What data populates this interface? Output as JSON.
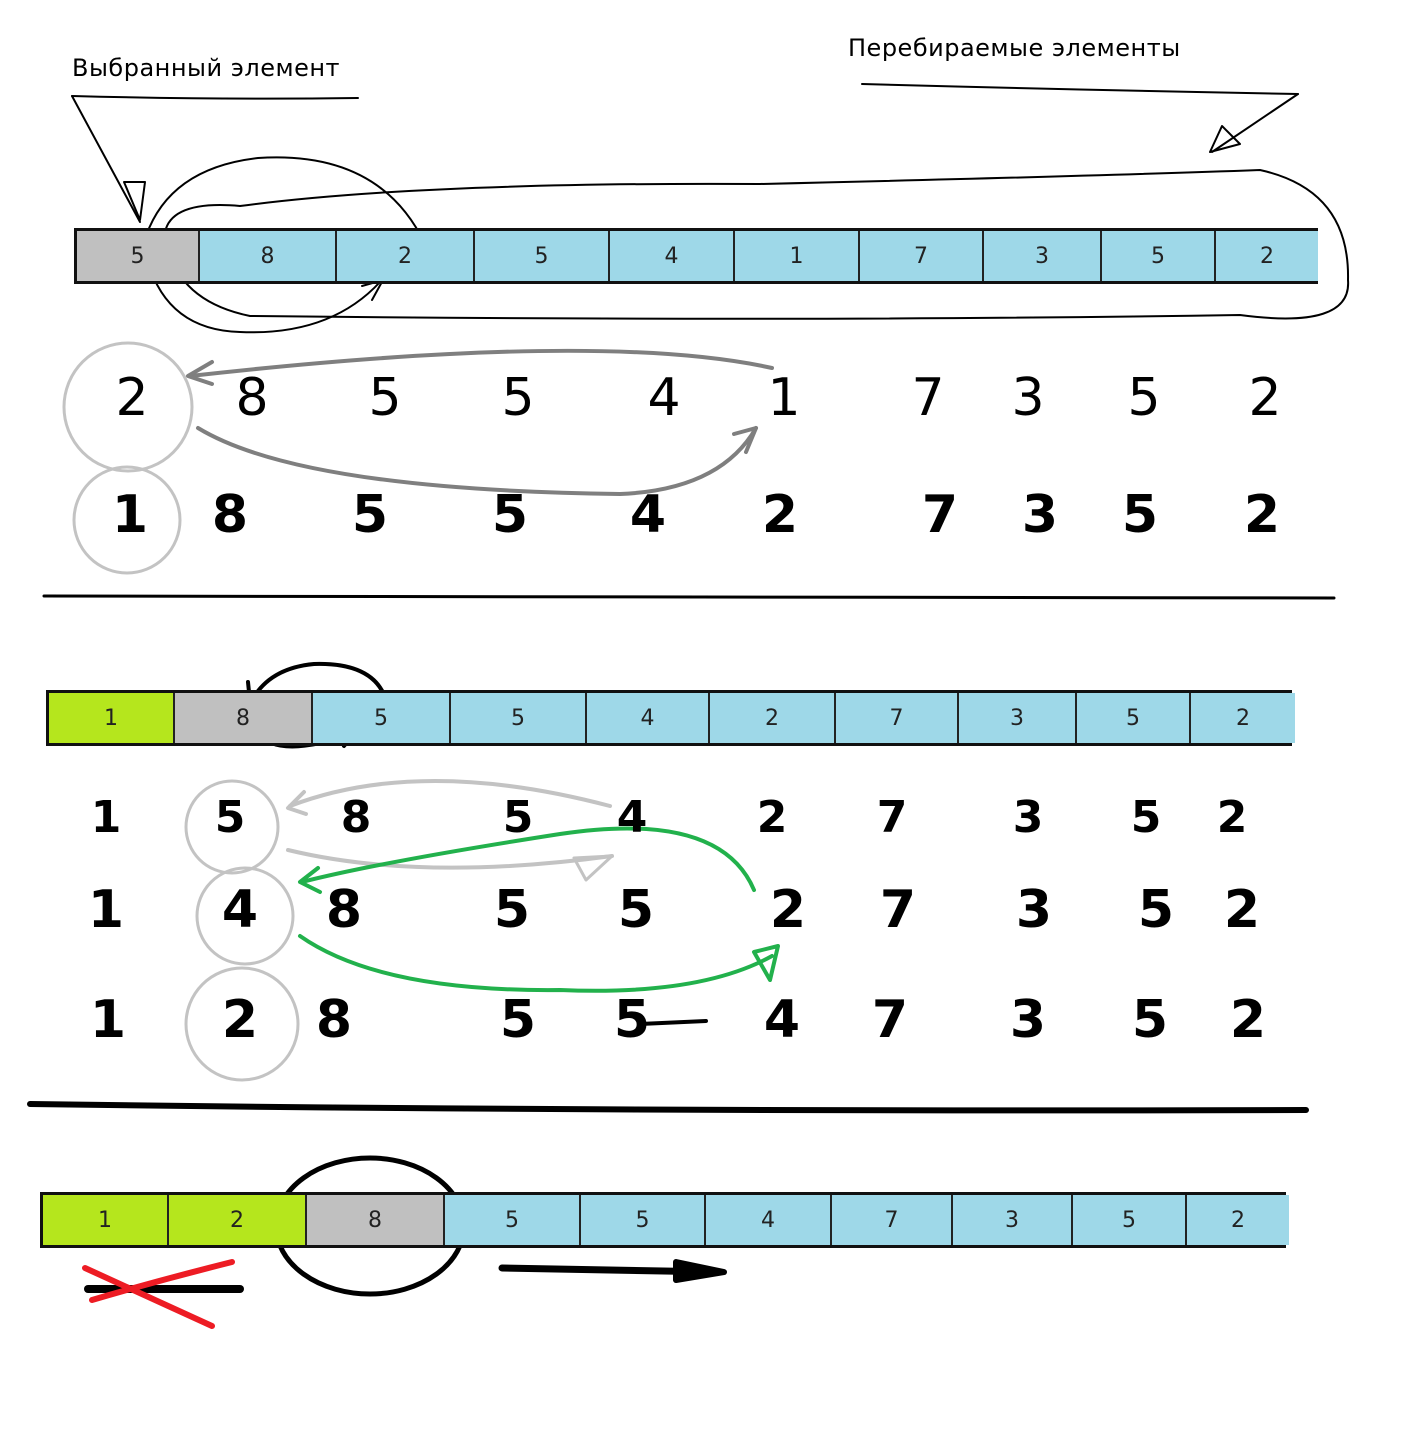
{
  "labels": {
    "selected": "Выбранный элемент",
    "iterated": "Перебираемые элементы"
  },
  "colors": {
    "selected": "#c0c0c0",
    "iterated": "#9ed8e8",
    "sorted": "#b5e61d",
    "arrow_gray": "#7f7f7f",
    "circle_gray": "#c3c3c3",
    "arrow_green": "#22b14c",
    "cross_red": "#ed1c24"
  },
  "steps": [
    {
      "bar": [
        {
          "v": "5",
          "state": "selected"
        },
        {
          "v": "8",
          "state": "iterated"
        },
        {
          "v": "2",
          "state": "iterated"
        },
        {
          "v": "5",
          "state": "iterated"
        },
        {
          "v": "4",
          "state": "iterated"
        },
        {
          "v": "1",
          "state": "iterated"
        },
        {
          "v": "7",
          "state": "iterated"
        },
        {
          "v": "3",
          "state": "iterated"
        },
        {
          "v": "5",
          "state": "iterated"
        },
        {
          "v": "2",
          "state": "iterated"
        }
      ],
      "rows": [
        [
          "2",
          "8",
          "5",
          "5",
          "4",
          "1",
          "7",
          "3",
          "5",
          "2"
        ],
        [
          "1",
          "8",
          "5",
          "5",
          "4",
          "2",
          "7",
          "3",
          "5",
          "2"
        ]
      ]
    },
    {
      "bar": [
        {
          "v": "1",
          "state": "sorted"
        },
        {
          "v": "8",
          "state": "selected"
        },
        {
          "v": "5",
          "state": "iterated"
        },
        {
          "v": "5",
          "state": "iterated"
        },
        {
          "v": "4",
          "state": "iterated"
        },
        {
          "v": "2",
          "state": "iterated"
        },
        {
          "v": "7",
          "state": "iterated"
        },
        {
          "v": "3",
          "state": "iterated"
        },
        {
          "v": "5",
          "state": "iterated"
        },
        {
          "v": "2",
          "state": "iterated"
        }
      ],
      "rows": [
        [
          "1",
          "5",
          "8",
          "5",
          "4",
          "2",
          "7",
          "3",
          "5",
          "2"
        ],
        [
          "1",
          "4",
          "8",
          "5",
          "5",
          "2",
          "7",
          "3",
          "5",
          "2"
        ],
        [
          "1",
          "2",
          "8",
          "5",
          "5",
          "4",
          "7",
          "3",
          "5",
          "2"
        ]
      ]
    },
    {
      "bar": [
        {
          "v": "1",
          "state": "sorted"
        },
        {
          "v": "2",
          "state": "sorted"
        },
        {
          "v": "8",
          "state": "selected"
        },
        {
          "v": "5",
          "state": "iterated"
        },
        {
          "v": "5",
          "state": "iterated"
        },
        {
          "v": "4",
          "state": "iterated"
        },
        {
          "v": "7",
          "state": "iterated"
        },
        {
          "v": "3",
          "state": "iterated"
        },
        {
          "v": "5",
          "state": "iterated"
        },
        {
          "v": "2",
          "state": "iterated"
        }
      ]
    }
  ]
}
